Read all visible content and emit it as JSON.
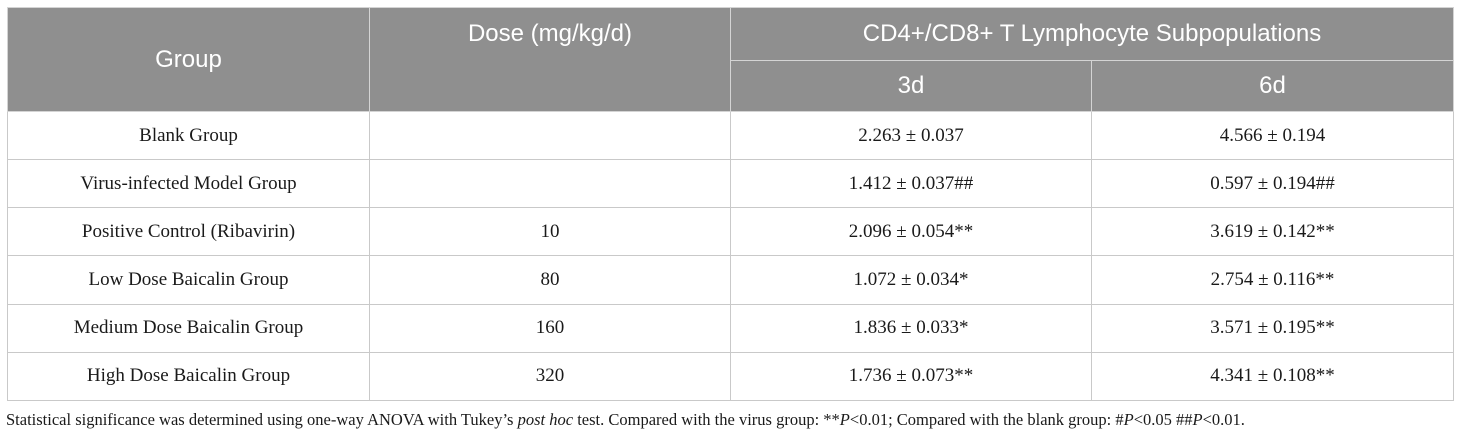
{
  "table": {
    "headers": {
      "group": "Group",
      "dose": "Dose (mg/kg/d)",
      "subpop": "CD4+/CD8+ T Lymphocyte Subpopulations",
      "day3": "3d",
      "day6": "6d"
    },
    "rows": [
      {
        "group": "Blank Group",
        "dose": "",
        "d3": "2.263 ± 0.037",
        "d6": "4.566 ± 0.194"
      },
      {
        "group": "Virus-infected Model Group",
        "dose": "",
        "d3": "1.412 ± 0.037##",
        "d6": "0.597 ± 0.194##"
      },
      {
        "group": "Positive Control (Ribavirin)",
        "dose": "10",
        "d3": "2.096 ± 0.054**",
        "d6": "3.619 ± 0.142**"
      },
      {
        "group": "Low Dose Baicalin Group",
        "dose": "80",
        "d3": "1.072 ± 0.034*",
        "d6": "2.754 ± 0.116**"
      },
      {
        "group": "Medium Dose Baicalin Group",
        "dose": "160",
        "d3": "1.836 ± 0.033*",
        "d6": "3.571 ± 0.195**"
      },
      {
        "group": "High Dose Baicalin Group",
        "dose": "320",
        "d3": "1.736 ± 0.073**",
        "d6": "4.341 ± 0.108**"
      }
    ]
  },
  "caption": {
    "part1": "Statistical significance was determined using one-way ANOVA with Tukey’s ",
    "italic": "post hoc",
    "part2": " test. Compared with the virus group: **",
    "p1": "P",
    "part3": "<0.01; Compared with the blank group: #",
    "p2": "P",
    "part4": "<0.05 ##",
    "p3": "P",
    "part5": "<0.01."
  }
}
